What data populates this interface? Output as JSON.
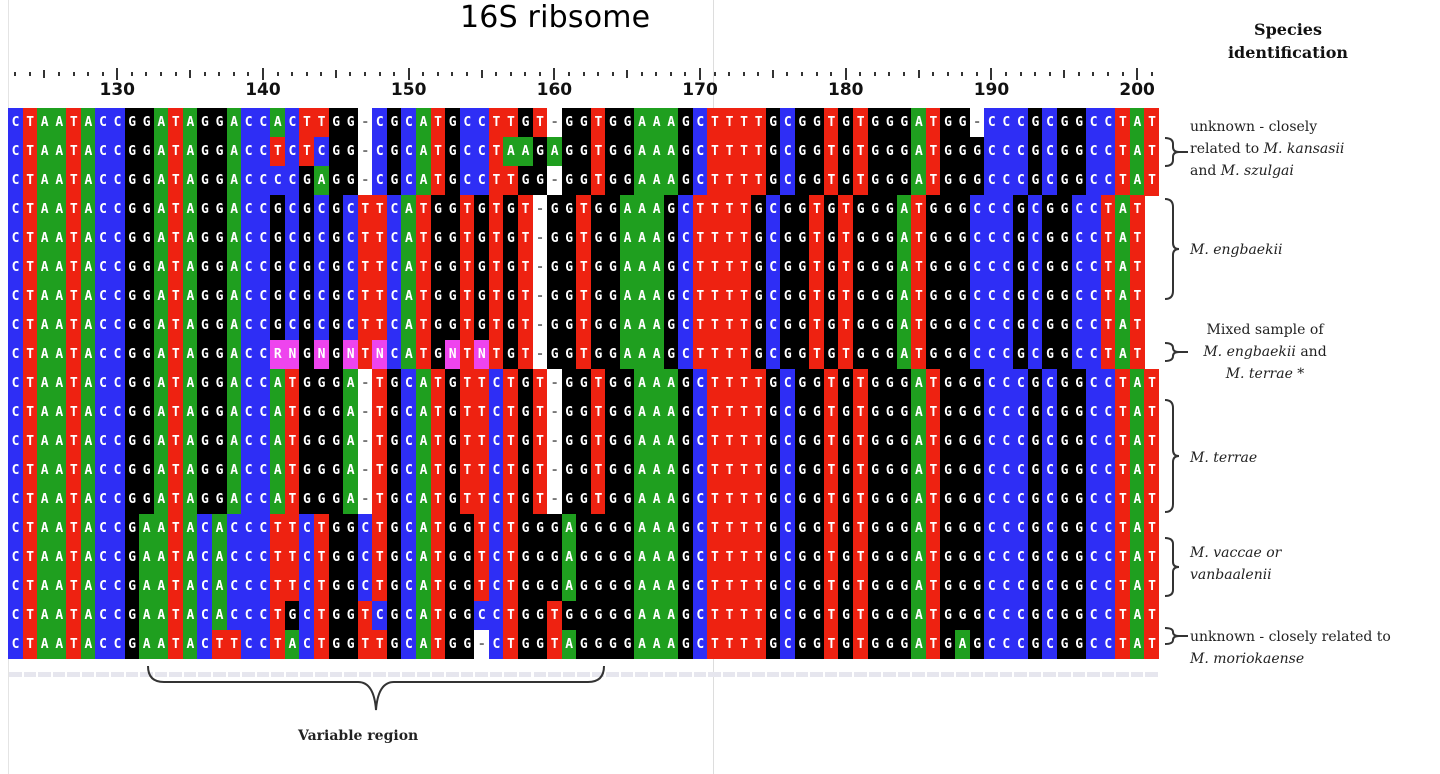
{
  "title": "16S ribsome",
  "species_header": [
    "Species",
    "identification"
  ],
  "axis": {
    "start_pos": 123,
    "end_pos": 201,
    "labels": [
      130,
      140,
      150,
      160,
      170,
      180,
      190,
      200
    ]
  },
  "colors": {
    "A": "#1f9f1f",
    "C": "#2e2ef5",
    "G": "#000000",
    "T": "#ee2211",
    "gap": "#ffffff",
    "ambiguous": "#ee44ee"
  },
  "sequences": [
    "CTAATACCGGATAGGACCACTTGG-CGCATGCCTTGT-GGTGGAAAGCTTTTGCGGTGTGGGATGG-CCCGCGGCCTAT",
    "CTAATACCGGATAGGACCTCTCGG-CGCATGCCTAAGAGGTGGAAAGCTTTTGCGGTGTGGGATGGGCCCGCGGCCTAT",
    "CTAATACCGGATAGGACCCCGAGG-CGCATGCCTTGG-GGTGGAAAGCTTTTGCGGTGTGGGATGGGCCCGCGGCCTAT",
    "CTAATACCGGATAGGACCGCGCGCTTCATGGTGTGT-GGTGGAAAGCTTTTGCGGTGTGGGATGGGCCCGCGGCCTAT",
    "CTAATACCGGATAGGACCGCGCGCTTCATGGTGTGT-GGTGGAAAGCTTTTGCGGTGTGGGATGGGCCCGCGGCCTAT",
    "CTAATACCGGATAGGACCGCGCGCTTCATGGTGTGT-GGTGGAAAGCTTTTGCGGTGTGGGATGGGCCCGCGGCCTAT",
    "CTAATACCGGATAGGACCGCGCGCTTCATGGTGTGT-GGTGGAAAGCTTTTGCGGTGTGGGATGGGCCCGCGGCCTAT",
    "CTAATACCGGATAGGACCGCGCGCTTCATGGTGTGT-GGTGGAAAGCTTTTGCGGTGTGGGATGGGCCCGCGGCCTAT",
    "CTAATACCGGATAGGACCRNGNGNTNCATGNTNTGT-GGTGGAAAGCTTTTGCGGTGTGGGATGGGCCCGCGGCCTAT",
    "CTAATACCGGATAGGACCATGGGA-TGCATGTTCTGT-GGTGGAAAGCTTTTGCGGTGTGGGATGGGCCCGCGGCCTAT",
    "CTAATACCGGATAGGACCATGGGA-TGCATGTTCTGT-GGTGGAAAGCTTTTGCGGTGTGGGATGGGCCCGCGGCCTAT",
    "CTAATACCGGATAGGACCATGGGA-TGCATGTTCTGT-GGTGGAAAGCTTTTGCGGTGTGGGATGGGCCCGCGGCCTAT",
    "CTAATACCGGATAGGACCATGGGA-TGCATGTTCTGT-GGTGGAAAGCTTTTGCGGTGTGGGATGGGCCCGCGGCCTAT",
    "CTAATACCGGATAGGACCATGGGA-TGCATGTTCTGT-GGTGGAAAGCTTTTGCGGTGTGGGATGGGCCCGCGGCCTAT",
    "CTAATACCGAATACACCCTTCTGGCTGCATGGTCTGGGAGGGGAAAGCTTTTGCGGTGTGGGATGGGCCCGCGGCCTAT",
    "CTAATACCGAATACACCCTTCTGGCTGCATGGTCTGGGAGGGGAAAGCTTTTGCGGTGTGGGATGGGCCCGCGGCCTAT",
    "CTAATACCGAATACACCCTTCTGGCTGCATGGTCTGGGAGGGGAAAGCTTTTGCGGTGTGGGATGGGCCCGCGGCCTAT",
    "CTAATACCGAATACACCCTGCTGGTCGCATGGCCTGGTGGGGGAAAGCTTTTGCGGTGTGGGATGGGCCCGCGGCCTAT",
    "CTAATACCGAATACTTCCTACTGGTTGCATGG-CTGGTAGGGGAAAGCTTTTGCGGTGTGGGATGAGCCCGCGGCCTAT"
  ],
  "annotations": [
    {
      "lines": [
        [
          {
            "t": "unknown - closely"
          }
        ],
        [
          {
            "t": "related to "
          },
          {
            "t": "M. kansasii",
            "i": true
          }
        ],
        [
          {
            "t": "and "
          },
          {
            "t": "M. szulgai",
            "i": true
          }
        ]
      ]
    },
    {
      "lines": [
        [
          {
            "t": "M. engbaekii",
            "i": true
          }
        ]
      ]
    },
    {
      "lines": [
        [
          {
            "t": "Mixed sample of"
          }
        ],
        [
          {
            "t": "M. engbaekii",
            "i": true
          },
          {
            "t": " and"
          }
        ],
        [
          {
            "t": "M. terrae *",
            "i": true
          }
        ]
      ]
    },
    {
      "lines": [
        [
          {
            "t": "M. terrae",
            "i": true
          }
        ]
      ]
    },
    {
      "lines": [
        [
          {
            "t": "M. vaccae or",
            "i": true
          }
        ],
        [
          {
            "t": "vanbaalenii",
            "i": true
          }
        ]
      ]
    },
    {
      "lines": [
        [
          {
            "t": "unknown - closely related to"
          }
        ],
        [
          {
            "t": "M. moriokaense",
            "i": true
          }
        ]
      ]
    }
  ],
  "variable_region_label": "Variable region"
}
